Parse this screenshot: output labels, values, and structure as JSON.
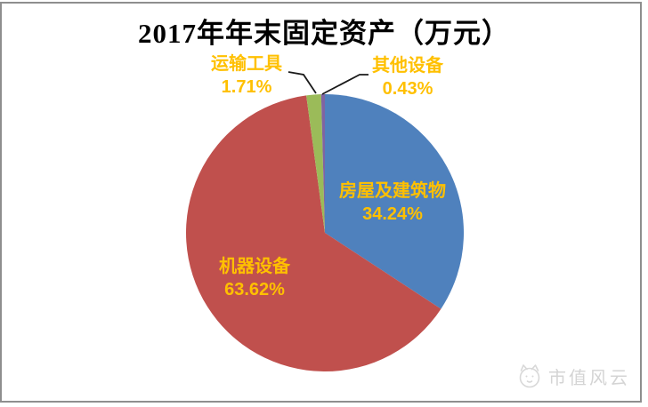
{
  "page": {
    "background": "#ffffff",
    "frame_border_color": "#8e8e8e"
  },
  "chart_data": {
    "type": "pie",
    "title": "2017年年末固定资产（万元）",
    "categories": [
      "房屋及建筑物",
      "机器设备",
      "运输工具",
      "其他设备"
    ],
    "values": [
      34.24,
      63.62,
      1.71,
      0.43
    ],
    "value_unit": "percent",
    "colors": [
      "#4F81BD",
      "#C0504D",
      "#9BBB59",
      "#8064A2"
    ],
    "label_color": "#FFC000",
    "start_angle_deg": 0,
    "direction": "clockwise",
    "legend": "none",
    "labels": [
      {
        "name": "房屋及建筑物",
        "value_text": "34.24%",
        "placement": "inside"
      },
      {
        "name": "机器设备",
        "value_text": "63.62%",
        "placement": "inside"
      },
      {
        "name": "运输工具",
        "value_text": "1.71%",
        "placement": "outside-top-left",
        "leader_line": true
      },
      {
        "name": "其他设备",
        "value_text": "0.43%",
        "placement": "outside-top-right",
        "leader_line": true
      }
    ]
  },
  "watermark": {
    "text": "市值风云",
    "logo": "mascot-logo"
  }
}
